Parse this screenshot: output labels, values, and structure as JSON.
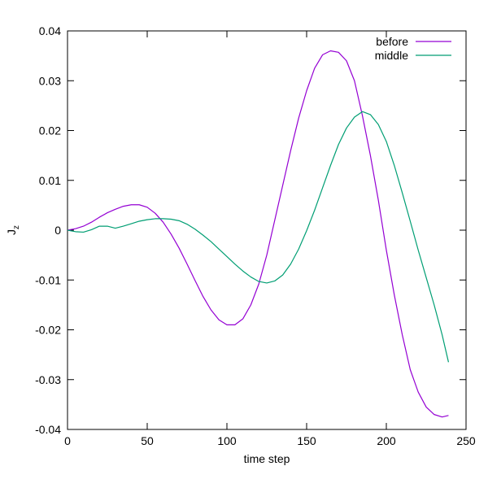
{
  "chart_data": {
    "type": "line",
    "xlabel": "time step",
    "ylabel": "J",
    "ylabel_sub": "z",
    "xlim": [
      0,
      250
    ],
    "ylim": [
      -0.04,
      0.04
    ],
    "x_ticks": [
      0,
      50,
      100,
      150,
      200,
      250
    ],
    "x_tick_labels": [
      "0",
      "50",
      "100",
      "150",
      "200",
      "250"
    ],
    "y_ticks": [
      -0.04,
      -0.03,
      -0.02,
      -0.01,
      0,
      0.01,
      0.02,
      0.03,
      0.04
    ],
    "y_tick_labels": [
      "-0.04",
      "-0.03",
      "-0.02",
      "-0.01",
      "0",
      "0.01",
      "0.02",
      "0.03",
      "0.04"
    ],
    "grid": false,
    "legend_position": "top-right",
    "series": [
      {
        "name": "before",
        "color": "#9400d3",
        "x": [
          0,
          5,
          10,
          15,
          20,
          25,
          30,
          35,
          40,
          45,
          50,
          55,
          60,
          65,
          70,
          75,
          80,
          85,
          90,
          95,
          100,
          105,
          110,
          115,
          120,
          125,
          130,
          135,
          140,
          145,
          150,
          155,
          160,
          165,
          170,
          175,
          180,
          185,
          190,
          195,
          200,
          205,
          210,
          215,
          220,
          225,
          230,
          235,
          239
        ],
        "y": [
          0,
          0.0003,
          0.0008,
          0.0016,
          0.0026,
          0.0035,
          0.0042,
          0.0048,
          0.0051,
          0.0051,
          0.0046,
          0.0034,
          0.0016,
          -0.0008,
          -0.0036,
          -0.0068,
          -0.0101,
          -0.0133,
          -0.016,
          -0.018,
          -0.019,
          -0.019,
          -0.0178,
          -0.015,
          -0.0108,
          -0.005,
          0.002,
          0.009,
          0.016,
          0.0225,
          0.028,
          0.0325,
          0.0352,
          0.036,
          0.0357,
          0.034,
          0.03,
          0.023,
          0.015,
          0.006,
          -0.004,
          -0.013,
          -0.021,
          -0.028,
          -0.0325,
          -0.0355,
          -0.037,
          -0.0375,
          -0.0372
        ]
      },
      {
        "name": "middle",
        "color": "#009e73",
        "x": [
          0,
          5,
          10,
          15,
          20,
          25,
          30,
          35,
          40,
          45,
          50,
          55,
          60,
          65,
          70,
          75,
          80,
          85,
          90,
          95,
          100,
          105,
          110,
          115,
          120,
          125,
          130,
          135,
          140,
          145,
          150,
          155,
          160,
          165,
          170,
          175,
          180,
          185,
          190,
          195,
          200,
          205,
          210,
          215,
          220,
          225,
          230,
          235,
          239
        ],
        "y": [
          0,
          -0.0003,
          -0.0004,
          0.0001,
          0.0008,
          0.0008,
          0.0004,
          0.0008,
          0.0013,
          0.0018,
          0.0021,
          0.0023,
          0.0023,
          0.0022,
          0.0019,
          0.0012,
          0.0002,
          -0.001,
          -0.0023,
          -0.0038,
          -0.0053,
          -0.0068,
          -0.0082,
          -0.0094,
          -0.0103,
          -0.0106,
          -0.0102,
          -0.009,
          -0.0068,
          -0.0038,
          -0.0001,
          0.004,
          0.0085,
          0.013,
          0.0172,
          0.0205,
          0.0227,
          0.0238,
          0.0232,
          0.0212,
          0.0178,
          0.013,
          0.0075,
          0.0018,
          -0.004,
          -0.0095,
          -0.015,
          -0.021,
          -0.0265
        ]
      }
    ]
  }
}
